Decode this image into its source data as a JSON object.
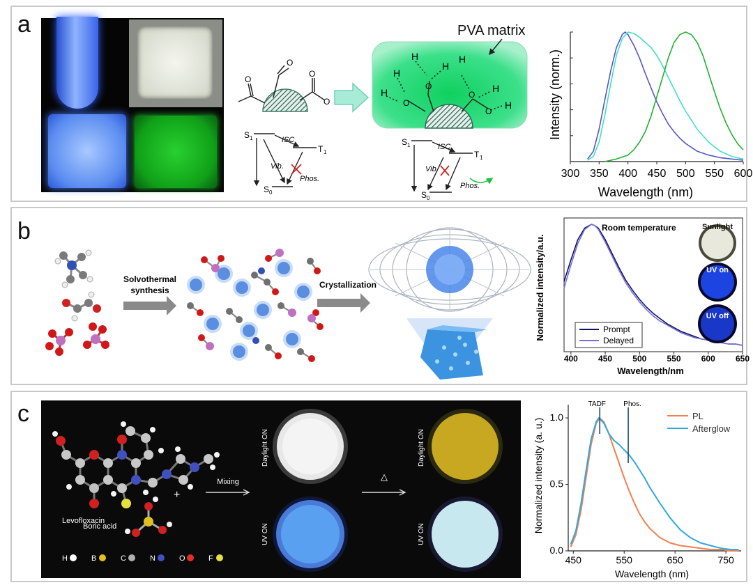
{
  "panels": {
    "a": {
      "label": "a",
      "pva_label": "PVA matrix",
      "diagram": {
        "s1": "S",
        "s0": "S",
        "t1": "T",
        "sub1": "1",
        "sub0": "0",
        "isc": "ISC",
        "vib": "Vib.",
        "phos": "Phos.",
        "h": "H",
        "o": "O"
      }
    },
    "b": {
      "label": "b",
      "step1": [
        "Solvothermal",
        "synthesis"
      ],
      "step2": "Crystallization",
      "thumbs": [
        "Sunlight",
        "UV on",
        "UV off"
      ]
    },
    "c": {
      "label": "c",
      "levofloxacin": "Levofloxacin",
      "plus": "+",
      "boric_acid": "Boric acid",
      "mixing": "Mixing",
      "heat": "△",
      "daylight_on": "Daylight ON",
      "uv_on": "UV ON",
      "legend": [
        {
          "sym": "H",
          "color": "#ffffff"
        },
        {
          "sym": "B",
          "color": "#e0c020"
        },
        {
          "sym": "C",
          "color": "#b0b0b0"
        },
        {
          "sym": "N",
          "color": "#4050c0"
        },
        {
          "sym": "O",
          "color": "#e03020"
        },
        {
          "sym": "F",
          "color": "#e8e040"
        }
      ]
    }
  },
  "chart_data": [
    {
      "type": "line",
      "xlabel": "Wavelength (nm)",
      "ylabel": "Intensity (norm.)",
      "xlim": [
        300,
        600
      ],
      "ylim": [
        0,
        1.0
      ],
      "xticks": [
        300,
        350,
        400,
        450,
        500,
        550,
        600
      ],
      "grid": false,
      "colors": [
        "#5555c8",
        "#40e0c0",
        "#20b030"
      ],
      "series": [
        {
          "x": [
            330,
            340,
            350,
            360,
            370,
            380,
            390,
            395,
            400,
            410,
            420,
            430,
            440,
            450,
            460,
            470,
            480,
            490,
            500,
            520,
            540,
            560,
            580,
            600
          ],
          "y": [
            0.02,
            0.08,
            0.25,
            0.48,
            0.7,
            0.88,
            0.98,
            1.0,
            0.98,
            0.9,
            0.8,
            0.68,
            0.57,
            0.46,
            0.37,
            0.29,
            0.23,
            0.18,
            0.14,
            0.08,
            0.05,
            0.03,
            0.02,
            0.01
          ]
        },
        {
          "x": [
            330,
            340,
            350,
            360,
            370,
            380,
            390,
            400,
            410,
            420,
            430,
            440,
            450,
            460,
            470,
            480,
            490,
            500,
            510,
            520,
            540,
            560,
            580,
            600
          ],
          "y": [
            0.01,
            0.04,
            0.15,
            0.36,
            0.6,
            0.82,
            0.95,
            1.0,
            0.99,
            0.96,
            0.92,
            0.88,
            0.82,
            0.74,
            0.65,
            0.56,
            0.47,
            0.39,
            0.32,
            0.25,
            0.15,
            0.08,
            0.04,
            0.02
          ]
        },
        {
          "x": [
            360,
            380,
            400,
            410,
            420,
            430,
            440,
            450,
            460,
            470,
            480,
            490,
            500,
            510,
            520,
            530,
            540,
            550,
            560,
            570,
            580,
            590,
            600
          ],
          "y": [
            0.0,
            0.02,
            0.05,
            0.09,
            0.15,
            0.23,
            0.35,
            0.5,
            0.65,
            0.8,
            0.92,
            0.98,
            1.0,
            0.98,
            0.92,
            0.82,
            0.68,
            0.54,
            0.41,
            0.3,
            0.21,
            0.14,
            0.09
          ]
        }
      ]
    },
    {
      "type": "line",
      "xlabel": "Wavelength/nm",
      "ylabel": "Normalized intensity/a.u.",
      "annotation": "Room temperature",
      "xlim": [
        390,
        650
      ],
      "ylim": [
        0,
        1.05
      ],
      "xticks": [
        400,
        450,
        500,
        550,
        600,
        650
      ],
      "grid": false,
      "legend_position": "bottom-left",
      "series": [
        {
          "name": "Prompt",
          "color": "#101060",
          "x": [
            390,
            400,
            410,
            420,
            430,
            435,
            440,
            450,
            460,
            470,
            480,
            490,
            500,
            510,
            520,
            530,
            540,
            550,
            560,
            570,
            580,
            590,
            600,
            610,
            620,
            630,
            640,
            650
          ],
          "y": [
            0.55,
            0.72,
            0.88,
            0.97,
            1.0,
            0.99,
            0.97,
            0.88,
            0.77,
            0.66,
            0.56,
            0.48,
            0.41,
            0.35,
            0.3,
            0.26,
            0.22,
            0.19,
            0.16,
            0.14,
            0.12,
            0.1,
            0.09,
            0.08,
            0.07,
            0.06,
            0.06,
            0.05
          ]
        },
        {
          "name": "Delayed",
          "color": "#7070d8",
          "x": [
            390,
            400,
            410,
            420,
            430,
            435,
            440,
            450,
            460,
            470,
            480,
            490,
            500,
            510,
            520,
            530,
            540,
            550,
            560,
            570,
            580,
            590,
            600,
            610,
            620,
            630,
            640,
            650
          ],
          "y": [
            0.5,
            0.68,
            0.85,
            0.96,
            1.0,
            0.99,
            0.96,
            0.86,
            0.75,
            0.64,
            0.54,
            0.46,
            0.39,
            0.33,
            0.28,
            0.24,
            0.21,
            0.18,
            0.15,
            0.13,
            0.11,
            0.1,
            0.09,
            0.08,
            0.07,
            0.06,
            0.06,
            0.05
          ]
        }
      ]
    },
    {
      "type": "line",
      "xlabel": "Wavelength (nm)",
      "ylabel": "Normalized intensity (a. u.)",
      "xlim": [
        440,
        780
      ],
      "ylim": [
        0,
        1.1
      ],
      "xticks": [
        450,
        550,
        650,
        750
      ],
      "yticks": [
        0.0,
        0.5,
        1.0
      ],
      "grid": false,
      "legend_position": "top-right",
      "annotations": [
        {
          "text": "TADF",
          "x": 502
        },
        {
          "text": "Phos.",
          "x": 558
        }
      ],
      "series": [
        {
          "name": "PL",
          "color": "#f08050",
          "x": [
            445,
            455,
            465,
            475,
            485,
            495,
            502,
            510,
            520,
            530,
            540,
            550,
            560,
            570,
            580,
            590,
            600,
            620,
            640,
            660,
            680,
            700,
            720,
            740,
            760,
            775
          ],
          "y": [
            0.03,
            0.12,
            0.3,
            0.55,
            0.8,
            0.96,
            1.0,
            0.97,
            0.88,
            0.77,
            0.66,
            0.55,
            0.45,
            0.36,
            0.28,
            0.22,
            0.17,
            0.1,
            0.06,
            0.04,
            0.03,
            0.02,
            0.01,
            0.01,
            0.0,
            0.0
          ]
        },
        {
          "name": "Afterglow",
          "color": "#30a8e0",
          "x": [
            445,
            455,
            465,
            475,
            485,
            495,
            500,
            510,
            520,
            530,
            540,
            550,
            560,
            570,
            580,
            590,
            600,
            610,
            620,
            640,
            660,
            680,
            700,
            720,
            740,
            760,
            775
          ],
          "y": [
            0.05,
            0.15,
            0.35,
            0.6,
            0.84,
            0.97,
            1.0,
            0.96,
            0.88,
            0.83,
            0.8,
            0.76,
            0.72,
            0.67,
            0.61,
            0.55,
            0.48,
            0.42,
            0.36,
            0.25,
            0.16,
            0.1,
            0.06,
            0.04,
            0.02,
            0.01,
            0.01
          ]
        }
      ]
    }
  ]
}
